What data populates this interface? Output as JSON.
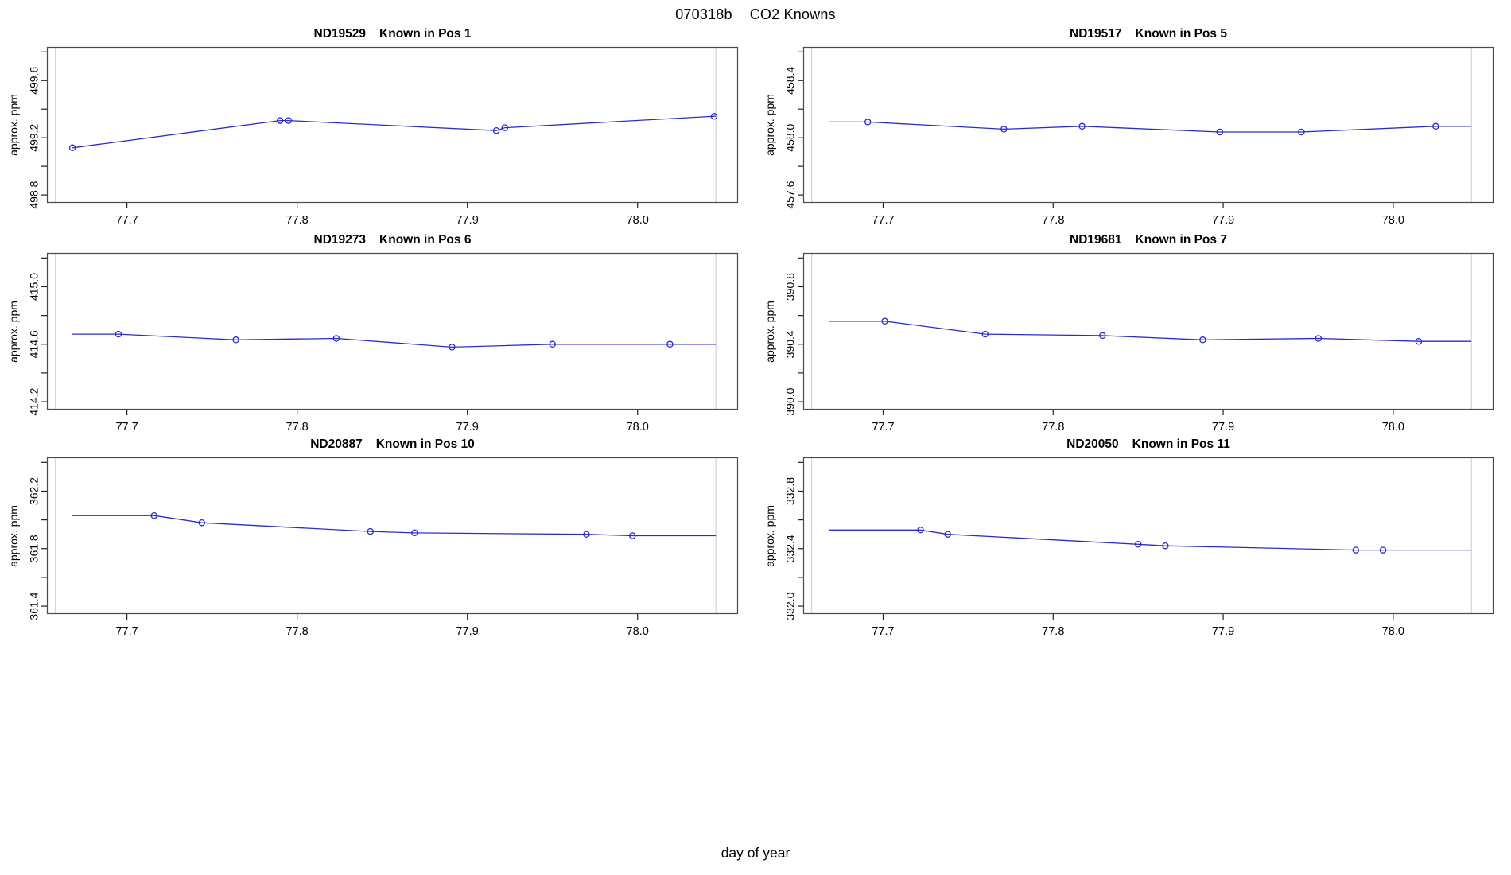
{
  "page": {
    "title_run_id": "070318b",
    "title_text": "CO2 Knowns",
    "xlabel": "day of year"
  },
  "style": {
    "line_color": "#2a2ad4",
    "marker_color": "#2a2ad4",
    "ref_line_color": "#cccccc",
    "frame_color": "#4a4a4a",
    "tick_color": "#222222",
    "text_color": "#000000",
    "background": "#ffffff"
  },
  "x_axis": {
    "lim": [
      77.653,
      78.059
    ],
    "ticks": [
      77.7,
      77.8,
      77.9,
      78.0
    ],
    "tick_labels": [
      "77.7",
      "77.8",
      "77.9",
      "78.0"
    ],
    "ref_lines": [
      77.658,
      78.046
    ],
    "line_start_x": 77.668,
    "line_end_x": 78.046
  },
  "chart_data": [
    {
      "type": "line",
      "sample_id": "ND19529",
      "position_label": "Known in Pos 1",
      "ylabel": "approx. ppm",
      "ylim": [
        498.745,
        499.835
      ],
      "y_ticks": [
        498.8,
        499.0,
        499.2,
        499.4,
        499.6,
        499.8
      ],
      "y_labeled_ticks": [
        498.8,
        499.2,
        499.6
      ],
      "y_tick_labels": [
        "498.8",
        "499.2",
        "499.6"
      ],
      "x": [
        77.668,
        77.79,
        77.795,
        77.917,
        77.922,
        78.045
      ],
      "y": [
        499.13,
        499.32,
        499.32,
        499.25,
        499.27,
        499.35
      ]
    },
    {
      "type": "line",
      "sample_id": "ND19517",
      "position_label": "Known in Pos 5",
      "ylabel": "approx. ppm",
      "ylim": [
        457.545,
        458.635
      ],
      "y_ticks": [
        457.6,
        457.8,
        458.0,
        458.2,
        458.4,
        458.6
      ],
      "y_labeled_ticks": [
        457.6,
        458.0,
        458.4
      ],
      "y_tick_labels": [
        "457.6",
        "458.0",
        "458.4"
      ],
      "x": [
        77.691,
        77.771,
        77.817,
        77.898,
        77.946,
        78.025
      ],
      "y": [
        458.11,
        458.06,
        458.08,
        458.04,
        458.04,
        458.08
      ]
    },
    {
      "type": "line",
      "sample_id": "ND19273",
      "position_label": "Known in Pos 6",
      "ylabel": "approx. ppm",
      "ylim": [
        414.145,
        415.235
      ],
      "y_ticks": [
        414.2,
        414.4,
        414.6,
        414.8,
        415.0,
        415.2
      ],
      "y_labeled_ticks": [
        414.2,
        414.6,
        415.0
      ],
      "y_tick_labels": [
        "414.2",
        "414.6",
        "415.0"
      ],
      "x": [
        77.695,
        77.764,
        77.823,
        77.891,
        77.95,
        78.019
      ],
      "y": [
        414.67,
        414.63,
        414.64,
        414.58,
        414.6,
        414.6
      ]
    },
    {
      "type": "line",
      "sample_id": "ND19681",
      "position_label": "Known in Pos 7",
      "ylabel": "approx. ppm",
      "ylim": [
        389.945,
        391.035
      ],
      "y_ticks": [
        390.0,
        390.2,
        390.4,
        390.6,
        390.8,
        391.0
      ],
      "y_labeled_ticks": [
        390.0,
        390.4,
        390.8
      ],
      "y_tick_labels": [
        "390.0",
        "390.4",
        "390.8"
      ],
      "x": [
        77.701,
        77.76,
        77.829,
        77.888,
        77.956,
        78.015
      ],
      "y": [
        390.56,
        390.47,
        390.46,
        390.43,
        390.44,
        390.42
      ]
    },
    {
      "type": "line",
      "sample_id": "ND20887",
      "position_label": "Known in Pos 10",
      "ylabel": "approx. ppm",
      "ylim": [
        361.345,
        362.435
      ],
      "y_ticks": [
        361.4,
        361.6,
        361.8,
        362.0,
        362.2,
        362.4
      ],
      "y_labeled_ticks": [
        361.4,
        361.8,
        362.2
      ],
      "y_tick_labels": [
        "361.4",
        "361.8",
        "362.2"
      ],
      "x": [
        77.716,
        77.744,
        77.843,
        77.869,
        77.97,
        77.997
      ],
      "y": [
        362.03,
        361.98,
        361.92,
        361.91,
        361.9,
        361.89
      ]
    },
    {
      "type": "line",
      "sample_id": "ND20050",
      "position_label": "Known in Pos 11",
      "ylabel": "approx. ppm",
      "ylim": [
        331.945,
        333.035
      ],
      "y_ticks": [
        332.0,
        332.2,
        332.4,
        332.6,
        332.8,
        333.0
      ],
      "y_labeled_ticks": [
        332.0,
        332.4,
        332.8
      ],
      "y_tick_labels": [
        "332.0",
        "332.4",
        "332.8"
      ],
      "x": [
        77.722,
        77.738,
        77.85,
        77.866,
        77.978,
        77.994
      ],
      "y": [
        332.53,
        332.5,
        332.43,
        332.42,
        332.39,
        332.39
      ]
    }
  ]
}
